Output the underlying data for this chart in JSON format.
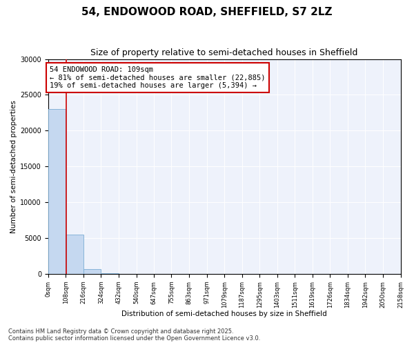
{
  "title": "54, ENDOWOOD ROAD, SHEFFIELD, S7 2LZ",
  "subtitle": "Size of property relative to semi-detached houses in Sheffield",
  "xlabel": "Distribution of semi-detached houses by size in Sheffield",
  "ylabel": "Number of semi-detached properties",
  "bar_values": [
    23000,
    5500,
    700,
    100,
    30,
    10,
    5,
    2,
    1,
    1,
    0,
    0,
    0,
    0,
    0,
    0,
    0,
    0,
    0,
    0
  ],
  "bin_edges": [
    0,
    108,
    216,
    324,
    432,
    540,
    647,
    755,
    863,
    971,
    1079,
    1187,
    1295,
    1403,
    1511,
    1619,
    1726,
    1834,
    1942,
    2050,
    2158
  ],
  "bin_labels": [
    "0sqm",
    "108sqm",
    "216sqm",
    "324sqm",
    "432sqm",
    "540sqm",
    "647sqm",
    "755sqm",
    "863sqm",
    "971sqm",
    "1079sqm",
    "1187sqm",
    "1295sqm",
    "1403sqm",
    "1511sqm",
    "1619sqm",
    "1726sqm",
    "1834sqm",
    "1942sqm",
    "2050sqm",
    "2158sqm"
  ],
  "bar_color": "#c5d8f0",
  "bar_edge_color": "#7aadd4",
  "property_size": 109,
  "red_line_color": "#cc0000",
  "annotation_line1": "54 ENDOWOOD ROAD: 109sqm",
  "annotation_line2": "← 81% of semi-detached houses are smaller (22,885)",
  "annotation_line3": "19% of semi-detached houses are larger (5,394) →",
  "annotation_box_color": "#cc0000",
  "ylim": [
    0,
    30000
  ],
  "yticks": [
    0,
    5000,
    10000,
    15000,
    20000,
    25000,
    30000
  ],
  "footer": "Contains HM Land Registry data © Crown copyright and database right 2025.\nContains public sector information licensed under the Open Government Licence v3.0.",
  "bg_color": "#eef2fb",
  "title_fontsize": 11,
  "subtitle_fontsize": 9,
  "annotation_fontsize": 7.5,
  "ylabel_fontsize": 7.5,
  "xlabel_fontsize": 7.5,
  "tick_fontsize": 6,
  "footer_fontsize": 6
}
